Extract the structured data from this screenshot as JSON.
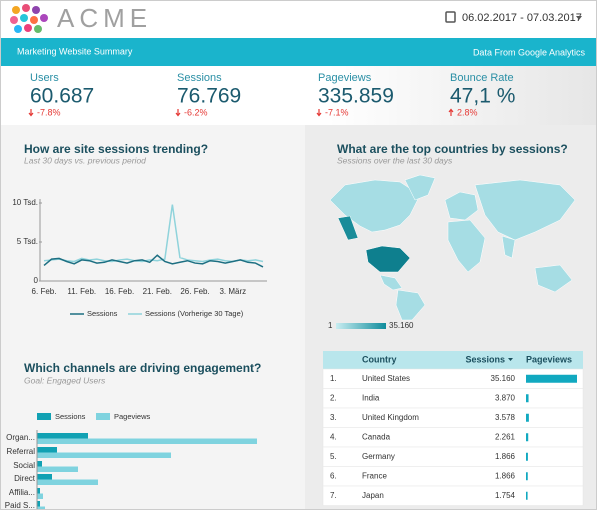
{
  "header": {
    "logo_text": "ACME",
    "date_range": "06.02.2017 - 07.03.2017"
  },
  "banner": {
    "left": "Marketing Website Summary",
    "right": "Data From Google Analytics"
  },
  "kpis": [
    {
      "label": "Users",
      "value": "60.687",
      "delta": "-7.8%"
    },
    {
      "label": "Sessions",
      "value": "76.769",
      "delta": "-6.2%"
    },
    {
      "label": "Pageviews",
      "value": "335.859",
      "delta": "-7.1%"
    },
    {
      "label": "Bounce Rate",
      "value": "47,1 %",
      "delta": "2.8%"
    }
  ],
  "sessions_chart": {
    "type": "line",
    "title": "How are site sessions trending?",
    "subtitle": "Last 30 days vs. previous period",
    "categories": [
      "6. Feb.",
      null,
      null,
      null,
      null,
      "11. Feb.",
      null,
      null,
      null,
      null,
      "16. Feb.",
      null,
      null,
      null,
      null,
      "21. Feb.",
      null,
      null,
      null,
      null,
      "26. Feb.",
      null,
      null,
      null,
      null,
      "3. März",
      null,
      null,
      null,
      null
    ],
    "series": [
      {
        "name": "Sessions",
        "color": "#1d6f82",
        "values": [
          2000,
          2800,
          2900,
          2500,
          2200,
          2700,
          2600,
          2300,
          2400,
          2700,
          2500,
          2300,
          2600,
          2700,
          2400,
          3300,
          2500,
          2200,
          2400,
          2600,
          2300,
          2200,
          2600,
          2500,
          2300,
          2500,
          2700,
          2400,
          2300,
          1800
        ]
      },
      {
        "name": "Sessions (Vorherige 30 Tage)",
        "color": "#8fd3db",
        "values": [
          2600,
          2700,
          2800,
          2600,
          2500,
          2900,
          2700,
          2800,
          2600,
          2500,
          2700,
          2800,
          2600,
          2500,
          2700,
          2600,
          2800,
          9800,
          3000,
          2700,
          2600,
          2500,
          2700,
          2800,
          2600,
          2500,
          2700,
          2600,
          2700,
          2500
        ]
      }
    ],
    "ylim": [
      0,
      10000
    ],
    "yticks": [
      0,
      {
        "value": 5000,
        "label": "5 Tsd."
      },
      {
        "value": 10000,
        "label": "10 Tsd."
      }
    ],
    "grid": false
  },
  "map": {
    "title": "What are the top countries by sessions?",
    "subtitle": "Sessions over the last 30 days",
    "legend_min": "1",
    "legend_max": "35.160"
  },
  "table": {
    "columns": [
      "Country",
      "Sessions",
      "Pageviews"
    ],
    "bar_color": "#11a9c0",
    "rows": [
      {
        "rank": "1.",
        "country": "United States",
        "sessions": "35.160",
        "pageviews": 160000
      },
      {
        "rank": "2.",
        "country": "India",
        "sessions": "3.870",
        "pageviews": 8000
      },
      {
        "rank": "3.",
        "country": "United Kingdom",
        "sessions": "3.578",
        "pageviews": 9000
      },
      {
        "rank": "4.",
        "country": "Canada",
        "sessions": "2.261",
        "pageviews": 7000
      },
      {
        "rank": "5.",
        "country": "Germany",
        "sessions": "1.866",
        "pageviews": 6000
      },
      {
        "rank": "6.",
        "country": "France",
        "sessions": "1.866",
        "pageviews": 5500
      },
      {
        "rank": "7.",
        "country": "Japan",
        "sessions": "1.754",
        "pageviews": 5000
      }
    ]
  },
  "channels_chart": {
    "type": "bar",
    "orientation": "horizontal",
    "title": "Which channels are driving engagement?",
    "subtitle": "Goal: Engaged Users",
    "categories": [
      "Organ...",
      "Referral",
      "Social",
      "Direct",
      "Affilia...",
      "Paid S..."
    ],
    "series": [
      {
        "name": "Sessions",
        "color": "#11a1b3",
        "values": [
          25500,
          10000,
          2500,
          7500,
          1500,
          1500
        ]
      },
      {
        "name": "Pageviews",
        "color": "#7fd3df",
        "values": [
          110000,
          67000,
          20500,
          30500,
          3000,
          4000
        ]
      }
    ]
  }
}
